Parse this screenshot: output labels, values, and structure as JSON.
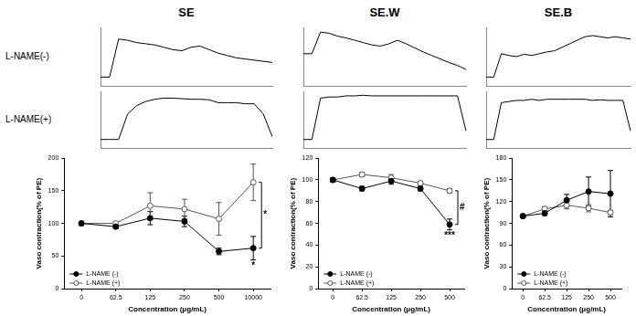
{
  "row_labels": [
    "L-NAME(-)",
    "L-NAME(+)"
  ],
  "chart_data": [
    {
      "type": "line",
      "title": "SE",
      "tick_labels": false,
      "ylim": [
        0,
        100
      ],
      "color": "#000000",
      "values": [
        15,
        15,
        80,
        78,
        74,
        72,
        70,
        66,
        62,
        60,
        66,
        68,
        62,
        56,
        52,
        48,
        46,
        44,
        42,
        40
      ]
    },
    {
      "type": "line",
      "tick_labels": false,
      "ylim": [
        0,
        100
      ],
      "color": "#000000",
      "values": [
        15,
        15,
        15,
        60,
        75,
        82,
        86,
        88,
        88,
        87,
        86,
        86,
        85,
        80,
        80,
        80,
        78,
        78,
        60,
        20
      ]
    },
    {
      "type": "line",
      "x_label": "Concentration (μg/mL)",
      "y_label": "Vaso contraction(% of PE)",
      "categories": [
        "0",
        "62.5",
        "125",
        "250",
        "500",
        "10000"
      ],
      "ylim": [
        0,
        200
      ],
      "yticks": [
        0,
        50,
        100,
        150,
        200
      ],
      "grid": false,
      "legend": "lower left",
      "series": [
        {
          "name": "L-NAME (-)",
          "color": "#000000",
          "marker": "filled_circle",
          "values": [
            100,
            95,
            108,
            103,
            57,
            62
          ],
          "errors": [
            3,
            3,
            10,
            8,
            5,
            18
          ]
        },
        {
          "name": "L-NAME (+)",
          "color": "#555555",
          "marker": "open_circle",
          "values": [
            100,
            100,
            127,
            122,
            107,
            163
          ],
          "errors": [
            3,
            3,
            20,
            15,
            25,
            28
          ]
        }
      ],
      "annotations": [
        {
          "text": "*",
          "category": "10000",
          "series": "L-NAME (-)"
        },
        {
          "text": "*",
          "category": "10000",
          "between": [
            "L-NAME (-)",
            "L-NAME (+)"
          ]
        }
      ]
    },
    {
      "type": "line",
      "title": "SE.W",
      "tick_labels": false,
      "ylim": [
        0,
        100
      ],
      "color": "#000000",
      "values": [
        55,
        55,
        92,
        90,
        85,
        82,
        78,
        74,
        70,
        68,
        72,
        78,
        72,
        65,
        58,
        52,
        46,
        40,
        35,
        28
      ]
    },
    {
      "type": "line",
      "tick_labels": false,
      "ylim": [
        0,
        100
      ],
      "color": "#000000",
      "values": [
        15,
        15,
        88,
        90,
        90,
        92,
        92,
        93,
        92,
        92,
        92,
        92,
        92,
        92,
        92,
        92,
        92,
        92,
        92,
        30
      ]
    },
    {
      "type": "line",
      "x_label": "Concentration (μg/mL)",
      "y_label": "Vaso contraction(% of PE)",
      "categories": [
        "0",
        "62.5",
        "125",
        "250",
        "500"
      ],
      "ylim": [
        0,
        120
      ],
      "yticks": [
        0,
        20,
        40,
        60,
        80,
        100,
        120
      ],
      "grid": false,
      "legend": "lower left",
      "series": [
        {
          "name": "L-NAME (-)",
          "color": "#000000",
          "marker": "filled_circle",
          "values": [
            100,
            92,
            99,
            92,
            59
          ],
          "errors": [
            2,
            2,
            3,
            2,
            5
          ]
        },
        {
          "name": "L-NAME (+)",
          "color": "#555555",
          "marker": "open_circle",
          "values": [
            100,
            105,
            102,
            97,
            90
          ],
          "errors": [
            2,
            2,
            3,
            2,
            2
          ]
        }
      ],
      "annotations": [
        {
          "text": "***",
          "category": "500",
          "series": "L-NAME (-)"
        },
        {
          "text": "#",
          "category": "500",
          "between": [
            "L-NAME (-)",
            "L-NAME (+)"
          ]
        }
      ]
    },
    {
      "type": "line",
      "title": "SE.B",
      "tick_labels": false,
      "ylim": [
        0,
        100
      ],
      "color": "#000000",
      "values": [
        15,
        15,
        55,
        52,
        50,
        54,
        52,
        55,
        58,
        60,
        66,
        72,
        78,
        84,
        86,
        84,
        82,
        84,
        82,
        80
      ]
    },
    {
      "type": "line",
      "tick_labels": false,
      "ylim": [
        0,
        100
      ],
      "color": "#000000",
      "values": [
        15,
        15,
        80,
        82,
        84,
        84,
        86,
        84,
        86,
        86,
        86,
        86,
        86,
        86,
        84,
        85,
        84,
        84,
        84,
        30
      ]
    },
    {
      "type": "line",
      "x_label": "Concentration (μg/mL)",
      "y_label": "Vaso contraction(% of PE)",
      "categories": [
        "0",
        "62.5",
        "125",
        "250",
        "500"
      ],
      "ylim": [
        0,
        180
      ],
      "yticks": [
        0,
        30,
        60,
        90,
        120,
        150,
        180
      ],
      "grid": false,
      "legend": "lower left",
      "series": [
        {
          "name": "L-NAME (-)",
          "color": "#000000",
          "marker": "filled_circle",
          "values": [
            100,
            104,
            122,
            134,
            131
          ],
          "errors": [
            2,
            3,
            8,
            20,
            32
          ]
        },
        {
          "name": "L-NAME (+)",
          "color": "#555555",
          "marker": "open_circle",
          "values": [
            100,
            110,
            115,
            111,
            105
          ],
          "errors": [
            2,
            3,
            5,
            5,
            3
          ]
        }
      ]
    }
  ]
}
